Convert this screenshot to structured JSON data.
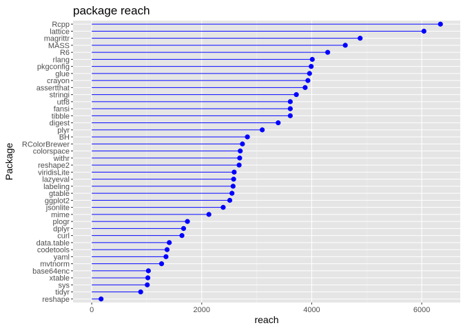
{
  "chart_data": {
    "type": "lollipop",
    "title": "package reach",
    "xlabel": "reach",
    "ylabel": "Package",
    "xlim": [
      -340,
      6700
    ],
    "xticks": [
      0,
      2000,
      4000,
      6000
    ],
    "grid": true,
    "legend": "none",
    "colors": {
      "panel": "#e5e5e5",
      "grid_major": "#ffffff",
      "series": "#0000ff",
      "tick_label": "#4d4d4d"
    },
    "categories": [
      "Rcpp",
      "lattice",
      "magrittr",
      "MASS",
      "R6",
      "rlang",
      "pkgconfig",
      "glue",
      "crayon",
      "assertthat",
      "stringi",
      "utf8",
      "fansi",
      "tibble",
      "digest",
      "plyr",
      "BH",
      "RColorBrewer",
      "colorspace",
      "withr",
      "reshape2",
      "viridisLite",
      "lazyeval",
      "labeling",
      "gtable",
      "ggplot2",
      "jsonlite",
      "mime",
      "plogr",
      "dplyr",
      "curl",
      "data.table",
      "codetools",
      "yaml",
      "mvtnorm",
      "base64enc",
      "xtable",
      "sys",
      "tidyr",
      "reshape"
    ],
    "values": [
      6340,
      6040,
      4880,
      4610,
      4290,
      4010,
      3990,
      3960,
      3930,
      3880,
      3720,
      3610,
      3610,
      3610,
      3390,
      3100,
      2830,
      2740,
      2700,
      2690,
      2680,
      2590,
      2580,
      2570,
      2550,
      2510,
      2390,
      2130,
      1740,
      1670,
      1640,
      1410,
      1370,
      1350,
      1270,
      1030,
      1020,
      1010,
      890,
      170
    ]
  }
}
